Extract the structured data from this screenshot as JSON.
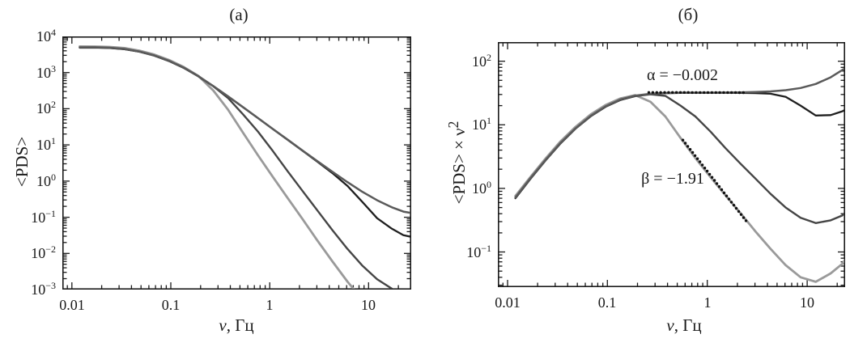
{
  "figure": {
    "background": "#ffffff",
    "frame_color": "#1a1a1a",
    "tick_color": "#1a1a1a",
    "text_color": "#1a1a1a",
    "fit_dot_color": "#111111"
  },
  "chart_data": [
    {
      "id": "panel-a",
      "type": "line",
      "title": "(a)",
      "xlabel_symbol": "ν",
      "xlabel_rest": ", Гц",
      "ylabel": {
        "pre": "<PDS>",
        "sup": ""
      },
      "xscale": "log",
      "yscale": "log",
      "xlim": [
        0.008,
        27
      ],
      "ylim": [
        0.001,
        10000
      ],
      "grid": false,
      "x_ticks": [
        {
          "v": 0.01,
          "label": "0.01"
        },
        {
          "v": 0.1,
          "label": "0.1"
        },
        {
          "v": 1,
          "label": "1"
        },
        {
          "v": 10,
          "label": "10"
        }
      ],
      "y_ticks": [
        {
          "v": 10000,
          "base": "10",
          "exp": "4"
        },
        {
          "v": 1000,
          "base": "10",
          "exp": "3"
        },
        {
          "v": 100,
          "base": "10",
          "exp": "2"
        },
        {
          "v": 10,
          "base": "10",
          "exp": "1"
        },
        {
          "v": 1,
          "base": "10",
          "exp": "0"
        },
        {
          "v": 0.1,
          "base": "10",
          "exp": "−1"
        },
        {
          "v": 0.01,
          "base": "10",
          "exp": "−2"
        },
        {
          "v": 0.001,
          "base": "10",
          "exp": "−3"
        }
      ],
      "series": [
        {
          "name": "pds-curve-gray-steepest",
          "color": "#9a9a9a",
          "width": 2.8,
          "x": [
            0.012,
            0.017,
            0.024,
            0.034,
            0.048,
            0.068,
            0.096,
            0.135,
            0.19,
            0.27,
            0.38,
            0.54,
            0.76,
            1.08,
            1.52,
            2.15,
            3.0,
            4.3,
            6.1,
            8.6,
            12.2
          ],
          "y": [
            5278,
            5259,
            5122,
            4758,
            4036,
            3157,
            2224,
            1427,
            812,
            315,
            93.5,
            21.3,
            5.19,
            1.29,
            0.338,
            0.0887,
            0.0239,
            0.00606,
            0.00167,
            0.00054,
            0.00023
          ]
        },
        {
          "name": "pds-curve-steep-dark",
          "color": "#454545",
          "width": 2.4,
          "x": [
            0.012,
            0.017,
            0.024,
            0.034,
            0.048,
            0.068,
            0.096,
            0.135,
            0.19,
            0.27,
            0.38,
            0.54,
            0.76,
            1.08,
            1.52,
            2.15,
            3.0,
            4.3,
            6.1,
            8.6,
            12.2,
            17.2,
            22.5,
            26.5
          ],
          "y": [
            4931,
            4948,
            4809,
            4455,
            3798,
            2963,
            2094,
            1355,
            784,
            414,
            197,
            68.6,
            23.4,
            6.69,
            1.86,
            0.53,
            0.161,
            0.0443,
            0.0134,
            0.00467,
            0.00192,
            0.00106,
            0.00074,
            0.0006
          ]
        },
        {
          "name": "pds-curve-black",
          "color": "#1f1f1f",
          "width": 2.3,
          "x": [
            0.012,
            0.017,
            0.024,
            0.034,
            0.048,
            0.068,
            0.096,
            0.135,
            0.19,
            0.27,
            0.38,
            0.54,
            0.76,
            1.08,
            1.52,
            2.15,
            3.0,
            4.3,
            6.1,
            8.6,
            12.2,
            17.2,
            22.5,
            26.5
          ],
          "y": [
            4861,
            4913,
            4774,
            4412,
            3776,
            2941,
            2083,
            1350,
            789,
            418,
            217,
            109,
            55.2,
            27.3,
            13.8,
            6.88,
            3.5,
            1.67,
            0.74,
            0.27,
            0.094,
            0.048,
            0.032,
            0.029
          ]
        },
        {
          "name": "pds-curve-noise-flattened",
          "color": "#5a5a5a",
          "width": 2.5,
          "x": [
            0.012,
            0.017,
            0.024,
            0.034,
            0.048,
            0.068,
            0.096,
            0.135,
            0.19,
            0.27,
            0.38,
            0.54,
            0.76,
            1.08,
            1.52,
            2.15,
            3.0,
            4.3,
            6.1,
            8.6,
            12.2,
            17.2,
            22.5,
            26.5
          ],
          "y": [
            5000,
            5017,
            4861,
            4498,
            3819,
            2984,
            2116,
            1372,
            798,
            422,
            219,
            110,
            55.4,
            27.4,
            13.9,
            7.0,
            3.63,
            1.81,
            0.94,
            0.51,
            0.295,
            0.188,
            0.143,
            0.132
          ]
        }
      ],
      "fits": [],
      "annotations": []
    },
    {
      "id": "panel-b",
      "type": "line",
      "title": "(б)",
      "xlabel_symbol": "ν",
      "xlabel_rest": ", Гц",
      "ylabel": {
        "pre": "<PDS> × ν",
        "sup": "2"
      },
      "xscale": "log",
      "yscale": "log",
      "xlim": [
        0.008,
        24
      ],
      "ylim": [
        0.028,
        200
      ],
      "grid": false,
      "x_ticks": [
        {
          "v": 0.01,
          "label": "0.01"
        },
        {
          "v": 0.1,
          "label": "0.1"
        },
        {
          "v": 1,
          "label": "1"
        },
        {
          "v": 10,
          "label": "10"
        }
      ],
      "y_ticks": [
        {
          "v": 100,
          "base": "10",
          "exp": "2"
        },
        {
          "v": 10,
          "base": "10",
          "exp": "1"
        },
        {
          "v": 1,
          "base": "10",
          "exp": "0"
        },
        {
          "v": 0.1,
          "base": "10",
          "exp": "−1"
        }
      ],
      "series": [
        {
          "name": "pdsnu2-curve-gray-steepest",
          "color": "#9a9a9a",
          "width": 2.8,
          "x": [
            0.012,
            0.017,
            0.024,
            0.034,
            0.048,
            0.068,
            0.096,
            0.135,
            0.19,
            0.27,
            0.38,
            0.54,
            0.76,
            1.08,
            1.52,
            2.15,
            3.0,
            4.3,
            6.1,
            8.6,
            12.2,
            17.2,
            22.5,
            24
          ],
          "y": [
            0.76,
            1.52,
            2.95,
            5.5,
            9.3,
            14.6,
            20.5,
            26.0,
            29.3,
            23.0,
            13.5,
            6.2,
            3.0,
            1.5,
            0.78,
            0.41,
            0.215,
            0.112,
            0.062,
            0.04,
            0.034,
            0.046,
            0.065,
            0.077
          ]
        },
        {
          "name": "pdsnu2-curve-steep-dark",
          "color": "#454545",
          "width": 2.4,
          "x": [
            0.012,
            0.017,
            0.024,
            0.034,
            0.048,
            0.068,
            0.096,
            0.135,
            0.19,
            0.27,
            0.38,
            0.54,
            0.76,
            1.08,
            1.52,
            2.15,
            3.0,
            4.3,
            6.1,
            8.6,
            12.2,
            17.2,
            22.5,
            24
          ],
          "y": [
            0.71,
            1.43,
            2.77,
            5.15,
            8.75,
            13.7,
            19.3,
            24.7,
            28.3,
            30.2,
            28.5,
            20.0,
            13.5,
            7.8,
            4.3,
            2.45,
            1.45,
            0.82,
            0.5,
            0.345,
            0.285,
            0.315,
            0.375,
            0.42
          ]
        },
        {
          "name": "pdsnu2-curve-black",
          "color": "#1f1f1f",
          "width": 2.3,
          "x": [
            0.012,
            0.017,
            0.024,
            0.034,
            0.048,
            0.068,
            0.096,
            0.135,
            0.19,
            0.27,
            0.38,
            0.54,
            0.76,
            1.08,
            1.52,
            2.15,
            3.0,
            4.3,
            6.1,
            8.6,
            12.2,
            17.2,
            22.5,
            24
          ],
          "y": [
            0.7,
            1.42,
            2.75,
            5.1,
            8.7,
            13.6,
            19.2,
            24.6,
            28.5,
            30.5,
            31.4,
            31.8,
            31.9,
            31.9,
            31.9,
            31.8,
            31.5,
            30.8,
            27.5,
            20.0,
            14.0,
            14.2,
            16.3,
            17.2
          ]
        },
        {
          "name": "pdsnu2-curve-noise-flattened",
          "color": "#5a5a5a",
          "width": 2.5,
          "x": [
            0.012,
            0.017,
            0.024,
            0.034,
            0.048,
            0.068,
            0.096,
            0.135,
            0.19,
            0.27,
            0.38,
            0.54,
            0.76,
            1.08,
            1.52,
            2.15,
            3.0,
            4.3,
            6.1,
            8.6,
            12.2,
            17.2,
            22.5,
            24
          ],
          "y": [
            0.72,
            1.45,
            2.8,
            5.2,
            8.8,
            13.8,
            19.5,
            25.0,
            28.8,
            30.8,
            31.6,
            32.0,
            32.0,
            32.0,
            32.1,
            32.3,
            32.7,
            33.5,
            35.0,
            37.9,
            43.9,
            55.7,
            72.5,
            78
          ]
        }
      ],
      "fits": [
        {
          "name": "alpha-fit-dots",
          "slope_label": "α = −0.002",
          "x1": 0.26,
          "y1": 32.3,
          "x2": 2.3,
          "y2": 32.1
        },
        {
          "name": "beta-fit-dots",
          "slope_label": "β = −1.91",
          "x1": 0.57,
          "y1": 5.75,
          "x2": 2.44,
          "y2": 0.31
        }
      ],
      "annotations": [
        {
          "name": "alpha-annotation",
          "text": "α = −0.002",
          "x": 0.56,
          "y": 56
        },
        {
          "name": "beta-annotation",
          "text": "β = −1.91",
          "x": 0.45,
          "y": 1.34
        }
      ]
    }
  ]
}
